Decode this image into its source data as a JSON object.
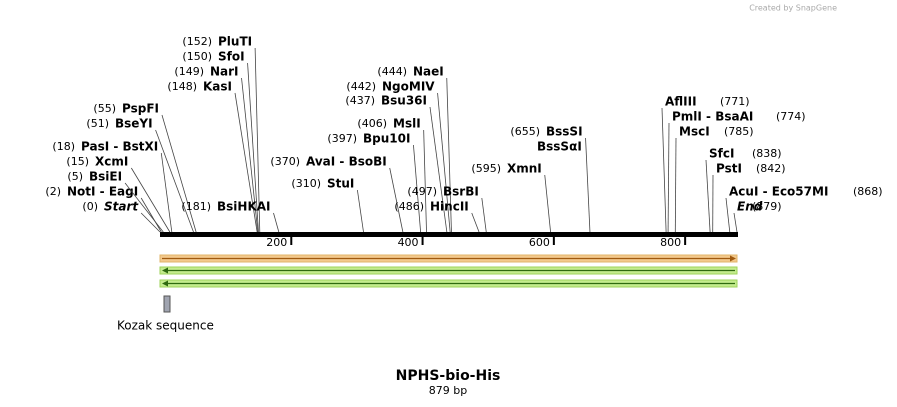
{
  "credit": "Created by SnapGene",
  "sequence": {
    "title": "NPHS-bio-His",
    "length": 879,
    "length_label": "879 bp",
    "ticks": [
      200,
      400,
      600,
      800
    ]
  },
  "enzymes": [
    {
      "site": 0,
      "site_label": "(0)",
      "name": "Start"
    },
    {
      "site": 2,
      "site_label": "(2)",
      "name": "NotI  -  EagI"
    },
    {
      "site": 5,
      "site_label": "(5)",
      "name": "BsiEI"
    },
    {
      "site": 15,
      "site_label": "(15)",
      "name": "XcmI"
    },
    {
      "site": 18,
      "site_label": "(18)",
      "name": "PasI  -  BstXI"
    },
    {
      "site": 51,
      "site_label": "(51)",
      "name": "BseYI"
    },
    {
      "site": 55,
      "site_label": "(55)",
      "name": "PspFI"
    },
    {
      "site": 148,
      "site_label": "(148)",
      "name": "KasI"
    },
    {
      "site": 149,
      "site_label": "(149)",
      "name": "NarI"
    },
    {
      "site": 150,
      "site_label": "(150)",
      "name": "SfoI"
    },
    {
      "site": 152,
      "site_label": "(152)",
      "name": "PluTI"
    },
    {
      "site": 181,
      "site_label": "(181)",
      "name": "BsiHKAI"
    },
    {
      "site": 310,
      "site_label": "(310)",
      "name": "StuI"
    },
    {
      "site": 370,
      "site_label": "(370)",
      "name": "AvaI  -  BsoBI"
    },
    {
      "site": 397,
      "site_label": "(397)",
      "name": "Bpu10I"
    },
    {
      "site": 406,
      "site_label": "(406)",
      "name": "MslI"
    },
    {
      "site": 437,
      "site_label": "(437)",
      "name": "Bsu36I"
    },
    {
      "site": 442,
      "site_label": "(442)",
      "name": "NgoMIV"
    },
    {
      "site": 444,
      "site_label": "(444)",
      "name": "NaeI"
    },
    {
      "site": 486,
      "site_label": "(486)",
      "name": "HincII"
    },
    {
      "site": 497,
      "site_label": "(497)",
      "name": "BsrBI"
    },
    {
      "site": 595,
      "site_label": "(595)",
      "name": "XmnI"
    },
    {
      "site": 655,
      "site_label": "(655)",
      "name": "BssSI"
    },
    {
      "name": "BssSαI"
    },
    {
      "site": 771,
      "site_label": "(771)",
      "name": "AflIII"
    },
    {
      "site": 774,
      "site_label": "(774)",
      "name": "PmlI  -  BsaAI"
    },
    {
      "site": 785,
      "site_label": "(785)",
      "name": "MscI"
    },
    {
      "site": 838,
      "site_label": "(838)",
      "name": "SfcI"
    },
    {
      "site": 842,
      "site_label": "(842)",
      "name": "PstI"
    },
    {
      "site": 868,
      "site_label": "(868)",
      "name": "AcuI  -  Eco57MI"
    },
    {
      "site": 879,
      "site_label": "(879)",
      "name": "End"
    }
  ],
  "features": [
    {
      "name": "Kozak sequence"
    }
  ]
}
